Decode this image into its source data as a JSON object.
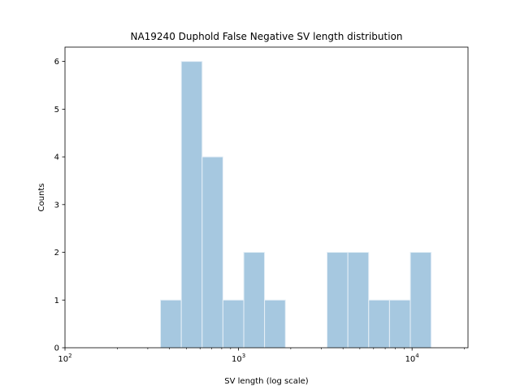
{
  "chart_data": {
    "type": "bar",
    "title": "NA19240 Duphold False Negative SV length distribution",
    "xlabel": "SV length (log scale)",
    "ylabel": "Counts",
    "x_scale": "log",
    "xlim": [
      100,
      21000
    ],
    "ylim": [
      0,
      6.3
    ],
    "grid": false,
    "bar_color": "#a6c8e0",
    "bar_edge_color": "#e6eff7",
    "bin_edges": [
      355,
      468,
      617,
      813,
      1072,
      1412,
      1862,
      2455,
      3236,
      4266,
      5623,
      7413,
      9772,
      12882
    ],
    "values": [
      1,
      6,
      4,
      1,
      2,
      1,
      0,
      0,
      2,
      2,
      1,
      1,
      2
    ],
    "y_ticks": [
      0,
      1,
      2,
      3,
      4,
      5,
      6
    ],
    "y_tick_labels": [
      "0",
      "1",
      "2",
      "3",
      "4",
      "5",
      "6"
    ],
    "x_ticks": [
      100,
      1000,
      10000
    ],
    "x_tick_labels": [
      {
        "base": "10",
        "exp": "2"
      },
      {
        "base": "10",
        "exp": "3"
      },
      {
        "base": "10",
        "exp": "4"
      }
    ]
  }
}
